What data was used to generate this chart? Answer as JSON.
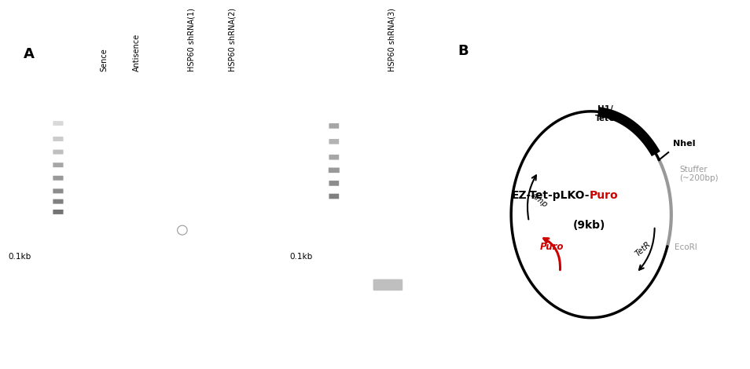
{
  "panel_A_label": "A",
  "panel_B_label": "B",
  "gel1_bg": "#111111",
  "gel2_bg": "#111111",
  "lane_labels_gel1": [
    "Sence",
    "Antisence",
    "HSP60 shRNA(1)",
    "HSP60 shRNA(2)"
  ],
  "lane_labels_gel2": [
    "HSP60 shRNA(3)"
  ],
  "size_label_left": "0.1kb",
  "size_label_right": "0.1kb",
  "label_H1TetO": "H1/\nTetO",
  "label_NheI": "NheI",
  "label_Stuffer": "Stuffer\n(~200bp)",
  "label_EcoRI": "EcoRI",
  "label_Amp": "Amp",
  "label_TetR": "TetR",
  "label_Puro": "Puro",
  "plasmid_black": "EZ-Tet-pLKO-",
  "plasmid_red": "Puro",
  "plasmid_size": "(9kb)",
  "color_black": "#000000",
  "color_red": "#cc0000",
  "color_gray": "#999999",
  "ladder1_brightness": [
    0.85,
    0.8,
    0.75,
    0.65,
    0.6,
    0.55,
    0.5,
    0.45
  ],
  "ladder1_y": [
    8.5,
    7.9,
    7.4,
    6.9,
    6.4,
    5.9,
    5.5,
    5.1
  ],
  "ladder2_brightness": [
    0.65,
    0.7,
    0.65,
    0.6,
    0.55,
    0.5
  ],
  "ladder2_y": [
    8.4,
    7.8,
    7.2,
    6.7,
    6.2,
    5.7
  ]
}
